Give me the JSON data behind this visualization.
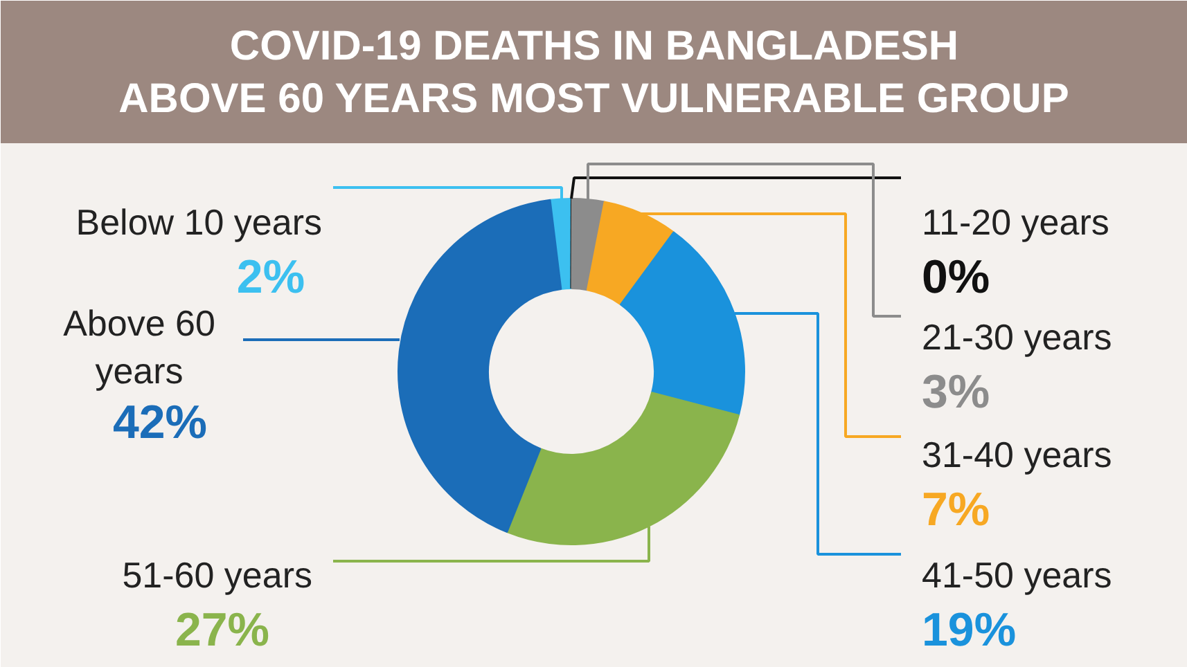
{
  "chart_data": {
    "type": "donut",
    "title": "COVID-19 DEATHS IN BANGLADESH\nABOVE 60 YEARS MOST VULNERABLE GROUP",
    "categories": [
      "Below 10 years",
      "11-20 years",
      "21-30 years",
      "31-40 years",
      "41-50 years",
      "51-60 years",
      "Above 60 years"
    ],
    "values": [
      2,
      0,
      3,
      7,
      19,
      27,
      42
    ],
    "value_labels": [
      "2%",
      "0%",
      "3%",
      "7%",
      "19%",
      "27%",
      "42%"
    ],
    "colors": [
      "#3cc0f0",
      "#111111",
      "#8c8c8c",
      "#f7a823",
      "#1a92dc",
      "#8ab44c",
      "#1b6db8"
    ]
  }
}
